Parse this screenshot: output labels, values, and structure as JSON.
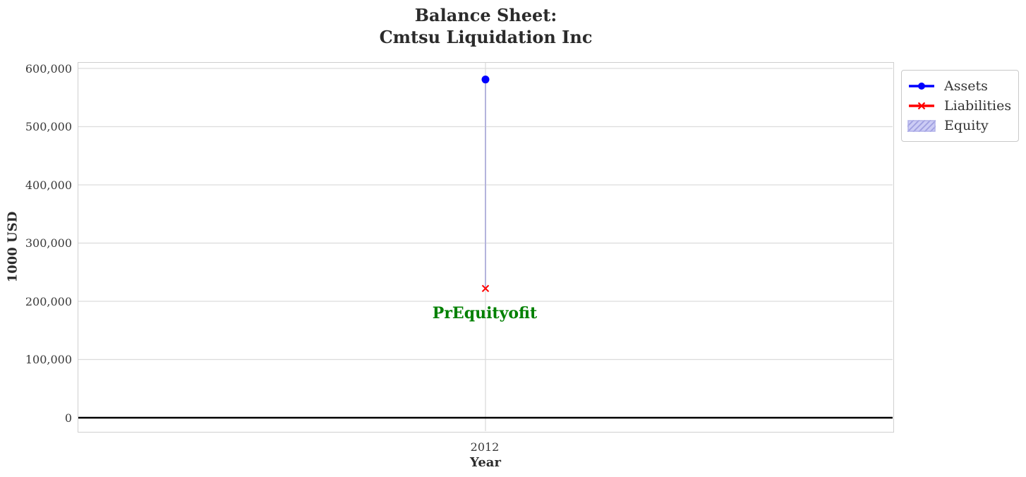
{
  "figure": {
    "title_line1": "Balance Sheet:",
    "title_line2": "Cmtsu Liquidation Inc",
    "background": "#ffffff"
  },
  "chart_data": {
    "type": "scatter",
    "title": "Balance Sheet: Cmtsu Liquidation Inc",
    "xlabel": "Year",
    "ylabel": "1000 USD",
    "x": [
      2012
    ],
    "xtick_labels": [
      "2012"
    ],
    "yticks": [
      0,
      100000,
      200000,
      300000,
      400000,
      500000,
      600000
    ],
    "ytick_labels": [
      "0",
      "100,000",
      "200,000",
      "300,000",
      "400,000",
      "500,000",
      "600,000"
    ],
    "ylim": [
      -26000,
      611000
    ],
    "grid": true,
    "gridline_color": "#dcdcdc",
    "zero_line_color": "#000000",
    "series": [
      {
        "name": "Assets",
        "type": "line",
        "marker": "circle",
        "color": "#0000ff",
        "values": [
          581000
        ]
      },
      {
        "name": "Liabilities",
        "type": "line",
        "marker": "x",
        "color": "#ff0000",
        "values": [
          222000
        ]
      },
      {
        "name": "Equity",
        "type": "hatched_area",
        "fill": "#ccccf5",
        "edge": "#9f9fe0",
        "band_from": 222000,
        "band_to": 581000
      }
    ],
    "annotation": {
      "text": "PrEquityofit",
      "color": "#008000",
      "x": 2012,
      "y": 180000
    },
    "legend": {
      "position": "outside-right-top",
      "items": [
        "Assets",
        "Liabilities",
        "Equity"
      ]
    }
  }
}
